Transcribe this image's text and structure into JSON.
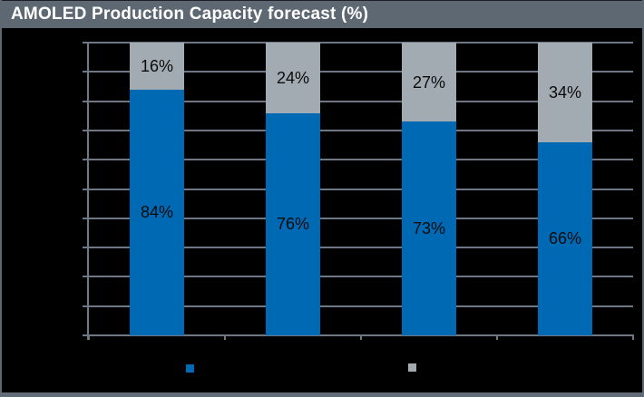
{
  "title": "AMOLED Production Capacity forecast (%)",
  "colors": {
    "frame": "#5e6873",
    "background": "#000000",
    "gridline": "#6e7884",
    "series_blue": "#0069b4",
    "series_gray": "#a3abb2",
    "title_text": "#ffffff",
    "bar_label_text": "#0b0b0b"
  },
  "chart_data": {
    "type": "bar",
    "stacked": true,
    "title": "AMOLED Production Capacity forecast (%)",
    "categories": [
      "",
      "",
      "",
      ""
    ],
    "series": [
      {
        "name": "blue",
        "color": "#0069b4",
        "values": [
          84,
          76,
          73,
          66
        ],
        "labels": [
          "84%",
          "76%",
          "73%",
          "66%"
        ]
      },
      {
        "name": "gray",
        "color": "#a3abb2",
        "values": [
          16,
          24,
          27,
          34
        ],
        "labels": [
          "16%",
          "24%",
          "27%",
          "34%"
        ]
      }
    ],
    "xlabel": "",
    "ylabel": "",
    "ylim": [
      0,
      100
    ],
    "gridline_step": 10,
    "grid": true,
    "tick_labels_visible": false,
    "legend_position": "bottom",
    "legend_labels_visible": false
  },
  "legend": {
    "markers": [
      {
        "name": "blue",
        "color": "#0069b4"
      },
      {
        "name": "gray",
        "color": "#a3abb2"
      }
    ]
  }
}
